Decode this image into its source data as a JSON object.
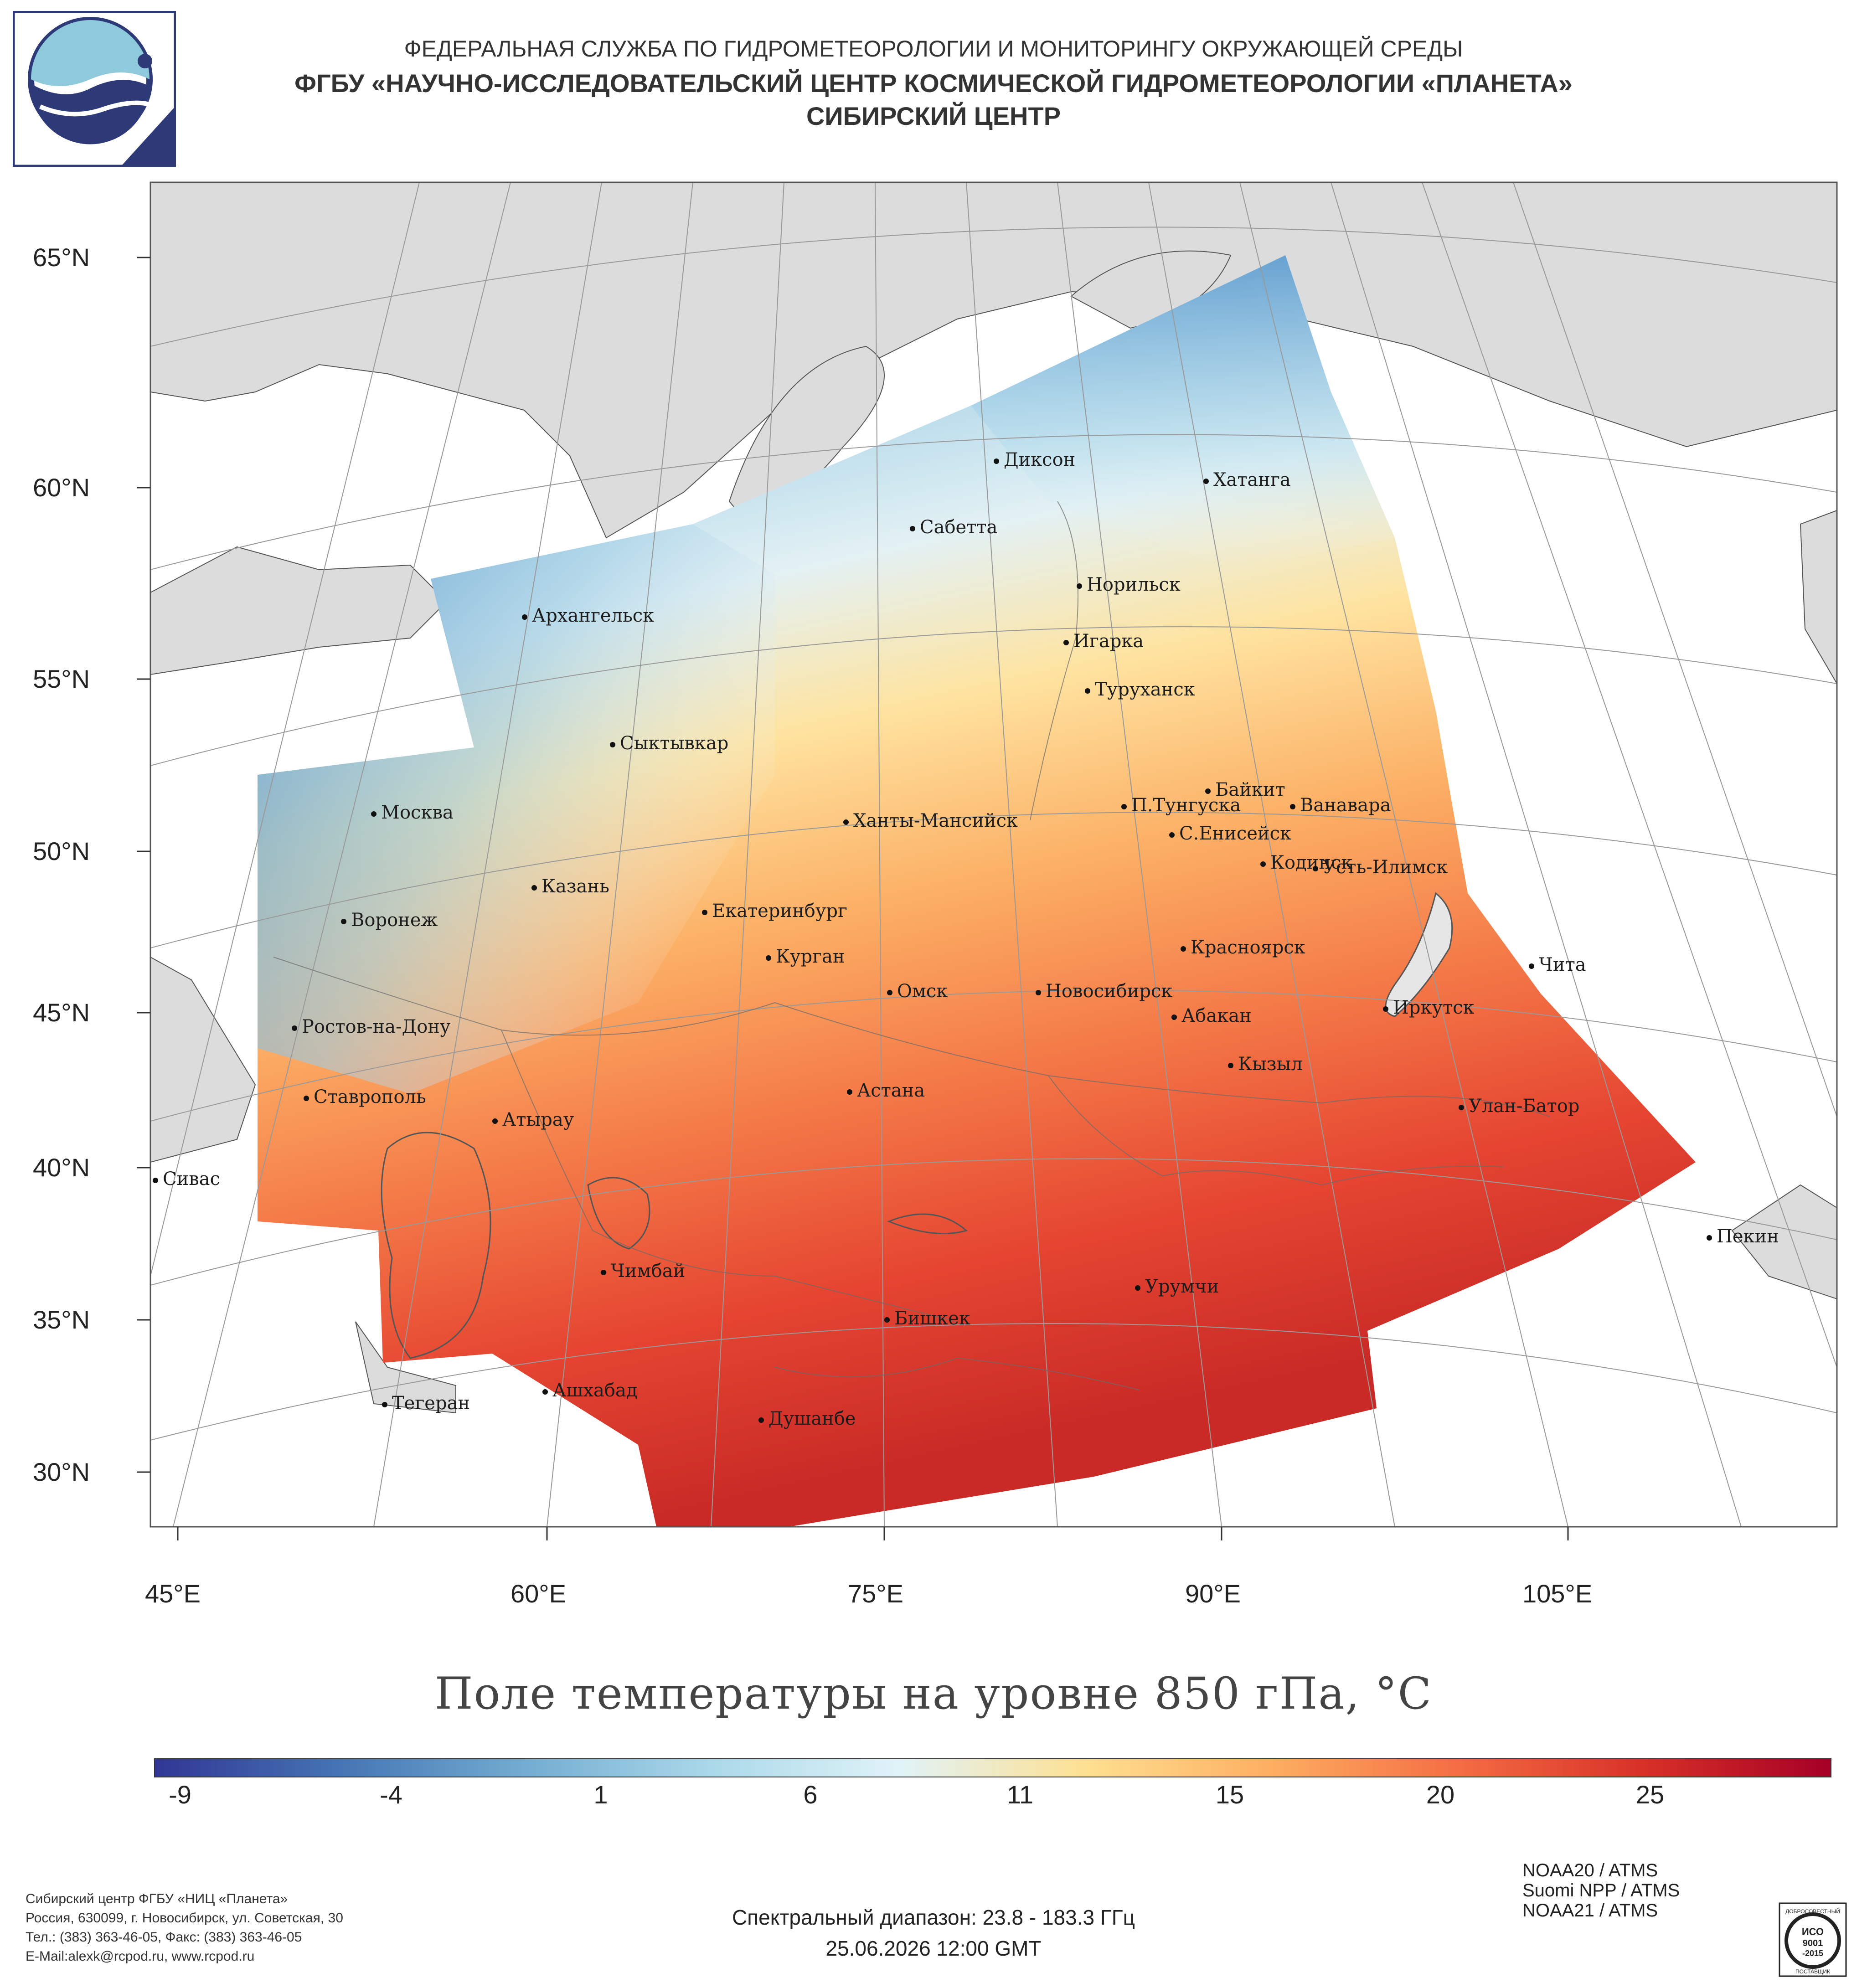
{
  "header": {
    "line1": "ФЕДЕРАЛЬНАЯ СЛУЖБА ПО ГИДРОМЕТЕОРОЛОГИИ И МОНИТОРИНГУ ОКРУЖАЮЩЕЙ СРЕДЫ",
    "line2": "ФГБУ «НАУЧНО-ИССЛЕДОВАТЕЛЬСКИЙ ЦЕНТР КОСМИЧЕСКОЙ ГИДРОМЕТЕОРОЛОГИИ «ПЛАНЕТА»",
    "line3": "СИБИРСКИЙ ЦЕНТР"
  },
  "map": {
    "lat_labels": [
      "65°N",
      "60°N",
      "55°N",
      "50°N",
      "45°N",
      "40°N",
      "35°N",
      "30°N"
    ],
    "lon_labels": [
      "45°E",
      "60°E",
      "75°E",
      "90°E",
      "105°E"
    ],
    "cities": [
      {
        "name": "Диксон"
      },
      {
        "name": "Хатанга"
      },
      {
        "name": "Сабетта"
      },
      {
        "name": "Норильск"
      },
      {
        "name": "Архангельск"
      },
      {
        "name": "Игарка"
      },
      {
        "name": "Туруханск"
      },
      {
        "name": "Сыктывкар"
      },
      {
        "name": "Байкит"
      },
      {
        "name": "П.Тунгуска"
      },
      {
        "name": "Ванавара"
      },
      {
        "name": "Москва"
      },
      {
        "name": "Ханты-Мансийск"
      },
      {
        "name": "С.Енисейск"
      },
      {
        "name": "Кодинск"
      },
      {
        "name": "Усть-Илимск"
      },
      {
        "name": "Казань"
      },
      {
        "name": "Екатеринбург"
      },
      {
        "name": "Воронеж"
      },
      {
        "name": "Курган"
      },
      {
        "name": "Красноярск"
      },
      {
        "name": "Чита"
      },
      {
        "name": "Омск"
      },
      {
        "name": "Новосибирск"
      },
      {
        "name": "Ростов-на-Дону"
      },
      {
        "name": "Абакан"
      },
      {
        "name": "Иркутск"
      },
      {
        "name": "Кызыл"
      },
      {
        "name": "Ставрополь"
      },
      {
        "name": "Астана"
      },
      {
        "name": "Улан-Батор"
      },
      {
        "name": "Атырау"
      },
      {
        "name": "Сивас"
      },
      {
        "name": "Пекин"
      },
      {
        "name": "Чимбай"
      },
      {
        "name": "Урумчи"
      },
      {
        "name": "Бишкек"
      },
      {
        "name": "Ашхабад"
      },
      {
        "name": "Тегеран"
      },
      {
        "name": "Душанбе"
      }
    ]
  },
  "legend": {
    "title": "Поле температуры на уровне 850 гПа, °С",
    "ticks": [
      "-9",
      "-4",
      "1",
      "6",
      "11",
      "15",
      "20",
      "25"
    ],
    "colors": [
      "#313695",
      "#4575b4",
      "#74add1",
      "#abd9e9",
      "#e0f3f8",
      "#fee090",
      "#fdae61",
      "#f46d43",
      "#d73027",
      "#a50026"
    ]
  },
  "footer": {
    "org_lines": [
      "Сибирский центр ФГБУ «НИЦ «Планета»",
      "Россия, 630099, г. Новосибирск, ул. Советская, 30",
      "Тел.: (383) 363-46-05, Факс: (383) 363-46-05",
      "E-Mail:alexk@rcpod.ru, www.rcpod.ru"
    ],
    "spectral": "Спектральный диапазон: 23.8 - 183.3 ГГц",
    "datetime": "25.06.2026 12:00 GMT",
    "sensors": [
      "NOAA20 / ATMS",
      "Suomi NPP / ATMS",
      "NOAA21 / ATMS"
    ],
    "iso_text": [
      "ДОБРОСОВЕСТНЫЙ",
      "ИСО",
      "9001",
      "-2015",
      "ПОСТАВЩИК"
    ]
  }
}
